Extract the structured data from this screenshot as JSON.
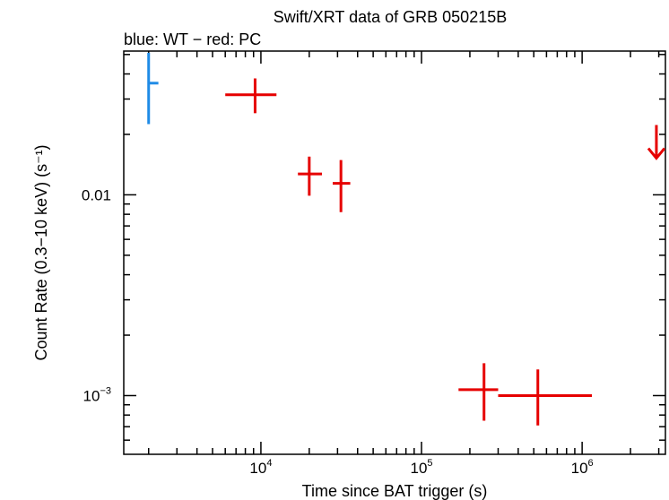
{
  "chart_data": {
    "type": "scatter",
    "title": "Swift/XRT data of GRB 050215B",
    "subtitle": "blue: WT − red: PC",
    "xlabel": "Time since BAT trigger (s)",
    "ylabel": "Count Rate (0.3−10 keV) (s⁻¹)",
    "x_scale": "log",
    "y_scale": "log",
    "xlim": [
      1400,
      3300000
    ],
    "ylim": [
      0.00051,
      0.052
    ],
    "x_ticks": [
      {
        "value": 10000,
        "base": "10",
        "exp": "4"
      },
      {
        "value": 100000,
        "base": "10",
        "exp": "5"
      },
      {
        "value": 1000000,
        "base": "10",
        "exp": "6"
      }
    ],
    "y_ticks": [
      {
        "value": 0.01,
        "label": "0.01"
      },
      {
        "value": 0.001,
        "base": "10",
        "exp": "−3"
      }
    ],
    "colors": {
      "WT": "#1f8be6",
      "PC": "#e60000"
    },
    "series": [
      {
        "name": "WT",
        "points": [
          {
            "x": 2000,
            "xlo": 1980,
            "xhi": 2300,
            "y": 0.036,
            "ylo": 0.0225,
            "yhi": 0.051
          }
        ]
      },
      {
        "name": "PC",
        "points": [
          {
            "x": 9200,
            "xlo": 6000,
            "xhi": 12500,
            "y": 0.0315,
            "ylo": 0.0255,
            "yhi": 0.038
          },
          {
            "x": 20000,
            "xlo": 17000,
            "xhi": 24000,
            "y": 0.0127,
            "ylo": 0.0099,
            "yhi": 0.0155
          },
          {
            "x": 31500,
            "xlo": 28000,
            "xhi": 36000,
            "y": 0.0114,
            "ylo": 0.0082,
            "yhi": 0.0149
          },
          {
            "x": 245000,
            "xlo": 170000,
            "xhi": 300000,
            "y": 0.00107,
            "ylo": 0.00075,
            "yhi": 0.00145
          },
          {
            "x": 530000,
            "xlo": 300000,
            "xhi": 1150000,
            "y": 0.001,
            "ylo": 0.00071,
            "yhi": 0.00135
          }
        ],
        "upper_limits": [
          {
            "x": 2900000,
            "y": 0.0167
          }
        ]
      }
    ]
  }
}
